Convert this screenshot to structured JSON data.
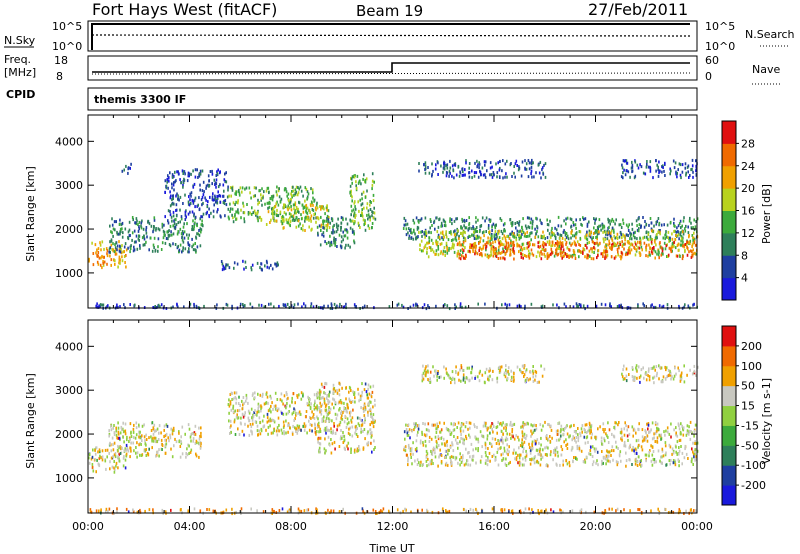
{
  "header": {
    "station": "Fort Hays West (fitACF)",
    "beam": "Beam 19",
    "date": "27/Feb/2011"
  },
  "strip_panels": {
    "nsky_label": "N.Sky",
    "nsky_ticks": [
      "10^5",
      "10^0"
    ],
    "nsearch_label": "N.Search",
    "nsearch_ticks": [
      "10^5",
      "10^0"
    ],
    "freq_label": "Freq.",
    "freq_unit": "[MHz]",
    "freq_ticks": [
      "18",
      "8"
    ],
    "nave_label": "Nave",
    "nave_ticks": [
      "60",
      "0"
    ],
    "cpid_label": "CPID",
    "cpid_text": "themis 3300 IF"
  },
  "chart_data": [
    {
      "type": "heatmap",
      "name": "power",
      "ylabel": "Slant Range [km]",
      "xlabel": "Time UT",
      "x_ticks": [
        "00:00",
        "04:00",
        "08:00",
        "12:00",
        "16:00",
        "20:00",
        "00:00"
      ],
      "x_range_hours": [
        0,
        24
      ],
      "y_ticks": [
        1000,
        2000,
        3000,
        4000
      ],
      "ylim": [
        200,
        4600
      ],
      "colorbar_label": "Power [dB]",
      "colorbar_ticks": [
        "4",
        "8",
        "12",
        "16",
        "20",
        "24",
        "28"
      ],
      "colorbar_colors": [
        "#1a1adc",
        "#1f3fa0",
        "#2e7f5a",
        "#3caa3c",
        "#b8d21e",
        "#f0a000",
        "#f06a00",
        "#e01010"
      ],
      "regions": [
        {
          "x0": 0.0,
          "x1": 1.5,
          "y0": 1150,
          "y1": 1750,
          "level": 5
        },
        {
          "x0": 0.8,
          "x1": 4.5,
          "y0": 1500,
          "y1": 2300,
          "level": 2
        },
        {
          "x0": 1.3,
          "x1": 1.7,
          "y0": 3300,
          "y1": 3550,
          "level": 1
        },
        {
          "x0": 3.0,
          "x1": 5.5,
          "y0": 2300,
          "y1": 3400,
          "level": 1
        },
        {
          "x0": 5.5,
          "x1": 9.0,
          "y0": 2200,
          "y1": 3000,
          "level": 3
        },
        {
          "x0": 7.0,
          "x1": 9.5,
          "y0": 2000,
          "y1": 2600,
          "level": 4
        },
        {
          "x0": 9.0,
          "x1": 10.5,
          "y0": 1600,
          "y1": 2300,
          "level": 2
        },
        {
          "x0": 10.3,
          "x1": 11.3,
          "y0": 2000,
          "y1": 3300,
          "level": 3
        },
        {
          "x0": 5.0,
          "x1": 7.5,
          "y0": 1100,
          "y1": 1300,
          "level": 1
        },
        {
          "x0": 12.4,
          "x1": 24.0,
          "y0": 1800,
          "y1": 2300,
          "level": 2
        },
        {
          "x0": 13.0,
          "x1": 24.0,
          "y0": 1400,
          "y1": 2000,
          "level": 4
        },
        {
          "x0": 14.5,
          "x1": 24.0,
          "y0": 1350,
          "y1": 1750,
          "level": 6
        },
        {
          "x0": 13.0,
          "x1": 18.0,
          "y0": 3200,
          "y1": 3600,
          "level": 1
        },
        {
          "x0": 21.0,
          "x1": 24.0,
          "y0": 3200,
          "y1": 3600,
          "level": 1
        },
        {
          "x0": 0.0,
          "x1": 24.0,
          "y0": 220,
          "y1": 330,
          "level": 1
        }
      ]
    },
    {
      "type": "heatmap",
      "name": "velocity",
      "ylabel": "Slant Range [km]",
      "xlabel": "Time UT",
      "x_ticks": [
        "00:00",
        "04:00",
        "08:00",
        "12:00",
        "16:00",
        "20:00",
        "00:00"
      ],
      "x_range_hours": [
        0,
        24
      ],
      "y_ticks": [
        1000,
        2000,
        3000,
        4000
      ],
      "ylim": [
        200,
        4600
      ],
      "colorbar_label": "Velocity [m s-1]",
      "colorbar_ticks": [
        "200",
        "100",
        "50",
        "15",
        "-15",
        "-50",
        "-100",
        "-200"
      ],
      "colorbar_colors": [
        "#1a1adc",
        "#1f3fa0",
        "#2e7f5a",
        "#3caa3c",
        "#90d040",
        "#c8c8c0",
        "#f0a000",
        "#f06a00",
        "#e01010"
      ],
      "regions": [
        {
          "x0": 0.0,
          "x1": 1.5,
          "y0": 1150,
          "y1": 1750,
          "level": 5
        },
        {
          "x0": 0.8,
          "x1": 4.5,
          "y0": 1500,
          "y1": 2300,
          "level": 5
        },
        {
          "x0": 5.5,
          "x1": 9.5,
          "y0": 2000,
          "y1": 3000,
          "level": 5
        },
        {
          "x0": 9.0,
          "x1": 11.3,
          "y0": 1600,
          "y1": 3200,
          "level": 5
        },
        {
          "x0": 12.4,
          "x1": 24.0,
          "y0": 1300,
          "y1": 2300,
          "level": 5
        },
        {
          "x0": 13.0,
          "x1": 18.0,
          "y0": 3200,
          "y1": 3600,
          "level": 5
        },
        {
          "x0": 21.0,
          "x1": 24.0,
          "y0": 3200,
          "y1": 3600,
          "level": 5
        },
        {
          "x0": 0.0,
          "x1": 24.0,
          "y0": 220,
          "y1": 330,
          "level": 6
        }
      ]
    }
  ]
}
